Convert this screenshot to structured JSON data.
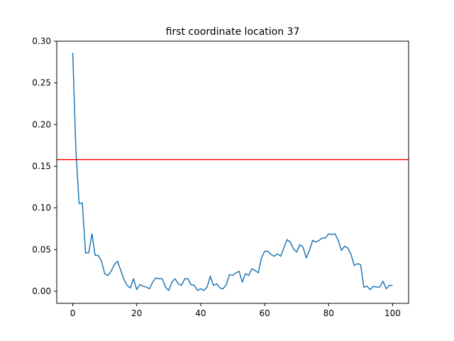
{
  "chart_data": {
    "type": "line",
    "title": "first coordinate location 37",
    "xlabel": "",
    "ylabel": "",
    "xlim": [
      -5,
      105
    ],
    "ylim": [
      -0.0145,
      0.3
    ],
    "xticks": [
      0,
      20,
      40,
      60,
      80,
      100
    ],
    "xtick_labels": [
      "0",
      "20",
      "40",
      "60",
      "80",
      "100"
    ],
    "yticks": [
      0.0,
      0.05,
      0.1,
      0.15,
      0.2,
      0.25,
      0.3
    ],
    "ytick_labels": [
      "0.00",
      "0.05",
      "0.10",
      "0.15",
      "0.20",
      "0.25",
      "0.30"
    ],
    "grid": false,
    "series": [
      {
        "color": "#1f77b4",
        "x": [
          0,
          1,
          2,
          3,
          4,
          5,
          6,
          7,
          8,
          9,
          10,
          11,
          12,
          13,
          14,
          15,
          16,
          17,
          18,
          19,
          20,
          21,
          22,
          23,
          24,
          25,
          26,
          27,
          28,
          29,
          30,
          31,
          32,
          33,
          34,
          35,
          36,
          37,
          38,
          39,
          40,
          41,
          42,
          43,
          44,
          45,
          46,
          47,
          48,
          49,
          50,
          51,
          52,
          53,
          54,
          55,
          56,
          57,
          58,
          59,
          60,
          61,
          62,
          63,
          64,
          65,
          66,
          67,
          68,
          69,
          70,
          71,
          72,
          73,
          74,
          75,
          76,
          77,
          78,
          79,
          80,
          81,
          82,
          83,
          84,
          85,
          86,
          87,
          88,
          89,
          90,
          91,
          92,
          93,
          94,
          95,
          96,
          97,
          98,
          99,
          100
        ],
        "y": [
          0.286,
          0.168,
          0.105,
          0.106,
          0.046,
          0.046,
          0.069,
          0.043,
          0.043,
          0.036,
          0.021,
          0.019,
          0.024,
          0.032,
          0.036,
          0.025,
          0.014,
          0.007,
          0.004,
          0.015,
          0.002,
          0.008,
          0.006,
          0.005,
          0.003,
          0.011,
          0.016,
          0.015,
          0.015,
          0.005,
          0.001,
          0.011,
          0.015,
          0.009,
          0.007,
          0.015,
          0.015,
          0.008,
          0.007,
          0.001,
          0.003,
          0.001,
          0.005,
          0.018,
          0.007,
          0.009,
          0.004,
          0.003,
          0.008,
          0.02,
          0.019,
          0.022,
          0.024,
          0.011,
          0.021,
          0.019,
          0.027,
          0.025,
          0.022,
          0.04,
          0.048,
          0.048,
          0.044,
          0.042,
          0.045,
          0.042,
          0.052,
          0.062,
          0.059,
          0.051,
          0.047,
          0.056,
          0.053,
          0.04,
          0.049,
          0.061,
          0.059,
          0.061,
          0.064,
          0.064,
          0.069,
          0.068,
          0.069,
          0.061,
          0.049,
          0.054,
          0.052,
          0.044,
          0.031,
          0.033,
          0.032,
          0.005,
          0.006,
          0.002,
          0.006,
          0.005,
          0.005,
          0.012,
          0.003,
          0.007,
          0.007
        ]
      }
    ],
    "reference_lines": [
      {
        "orientation": "horizontal",
        "y": 0.158,
        "color": "#ff0000"
      }
    ]
  }
}
